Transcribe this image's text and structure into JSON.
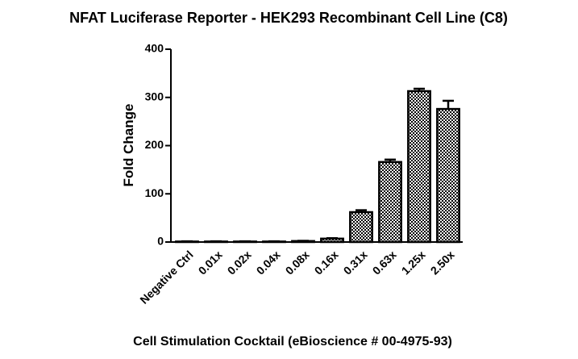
{
  "chart_data": {
    "type": "bar",
    "title": "NFAT Luciferase Reporter - HEK293 Recombinant Cell Line (C8)",
    "x_label": "Cell Stimulation Cocktail (eBioscience # 00-4975-93)",
    "y_label": "Fold Change",
    "categories": [
      "Negative Ctrl",
      "0.01x",
      "0.02x",
      "0.04x",
      "0.08x",
      "0.16x",
      "0.31x",
      "0.63x",
      "1.25x",
      "2.50x"
    ],
    "values": [
      1,
      1,
      1,
      1,
      2,
      7,
      62,
      166,
      313,
      276
    ],
    "errors": [
      0.5,
      0.5,
      0.5,
      0.5,
      0.5,
      1,
      4,
      5,
      5,
      17
    ],
    "ylim": [
      0,
      400
    ],
    "yticks": [
      0,
      100,
      200,
      300,
      400
    ]
  }
}
